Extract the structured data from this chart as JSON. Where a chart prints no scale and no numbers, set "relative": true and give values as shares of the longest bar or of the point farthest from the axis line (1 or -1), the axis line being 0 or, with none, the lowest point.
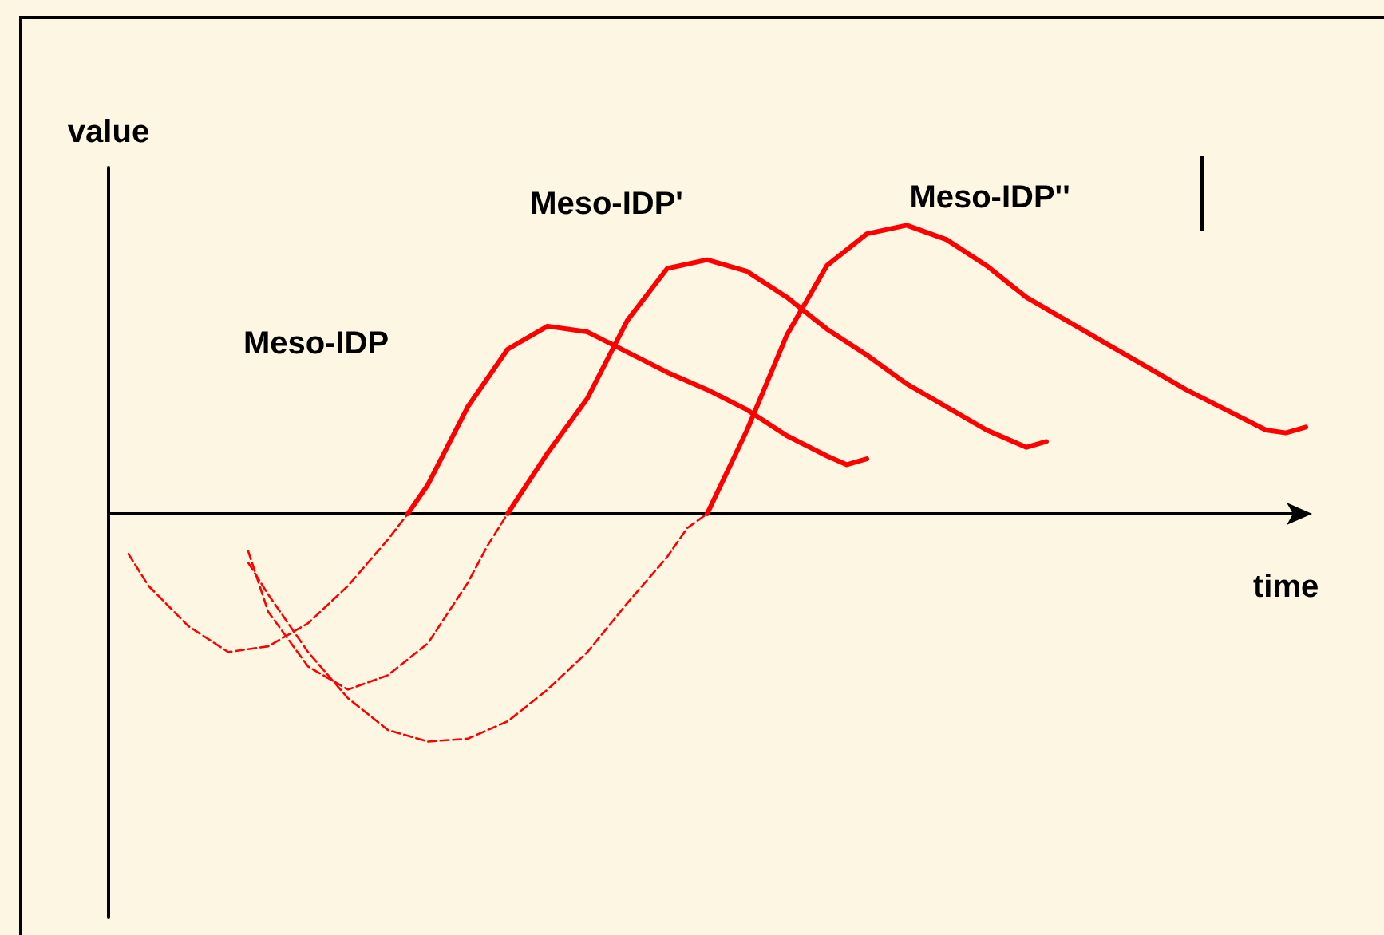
{
  "chart_data": {
    "type": "line",
    "relative": true,
    "xlabel": "time",
    "ylabel": "value",
    "marker": "none",
    "categories": [
      null,
      null,
      null,
      null,
      null,
      null,
      null,
      null,
      null,
      null,
      null,
      null,
      null,
      null,
      null,
      null,
      null,
      null,
      null,
      null,
      null,
      null,
      null,
      null,
      null,
      null,
      null,
      null,
      null,
      null,
      null,
      null,
      null,
      null,
      null,
      null,
      null,
      null,
      null,
      null,
      null,
      null,
      null,
      null,
      null,
      null,
      null,
      null,
      null,
      null,
      null,
      null,
      null,
      null,
      null,
      null,
      null,
      null,
      null,
      null,
      null
    ],
    "series": [
      {
        "color": "#ff0000",
        "line_style": "dashed",
        "values": [
          null,
          -0.14,
          -0.25,
          null,
          -0.39,
          null,
          -0.48,
          null,
          -0.46,
          null,
          -0.38,
          null,
          -0.25,
          null,
          -0.09,
          0,
          null,
          null,
          null,
          null,
          null,
          null,
          null,
          null,
          null,
          null,
          null,
          null,
          null,
          null,
          null,
          null,
          null,
          null,
          null,
          null,
          null,
          null,
          null,
          null,
          null,
          null,
          null,
          null,
          null,
          null,
          null,
          null,
          null,
          null,
          null,
          null,
          null,
          null,
          null,
          null,
          null,
          null,
          null,
          null,
          null
        ]
      },
      {
        "name": "Meso-IDP",
        "color": "#ff0000",
        "line_style": "solid",
        "values": [
          null,
          null,
          null,
          null,
          null,
          null,
          null,
          null,
          null,
          null,
          null,
          null,
          null,
          null,
          null,
          0,
          0.1,
          null,
          0.37,
          null,
          0.57,
          null,
          0.65,
          null,
          0.63,
          null,
          0.56,
          null,
          0.49,
          null,
          0.43,
          null,
          0.36,
          null,
          0.27,
          null,
          0.2,
          0.17,
          0.19,
          null,
          null,
          null,
          null,
          null,
          null,
          null,
          null,
          null,
          null,
          null,
          null,
          null,
          null,
          null,
          null,
          null,
          null,
          null,
          null,
          null,
          null
        ]
      },
      {
        "color": "#ff0000",
        "line_style": "dashed",
        "values": [
          null,
          null,
          null,
          null,
          null,
          null,
          null,
          -0.13,
          -0.34,
          null,
          -0.53,
          null,
          -0.61,
          null,
          -0.56,
          null,
          -0.45,
          null,
          -0.24,
          -0.11,
          0,
          null,
          null,
          null,
          null,
          null,
          null,
          null,
          null,
          null,
          null,
          null,
          null,
          null,
          null,
          null,
          null,
          null,
          null,
          null,
          null,
          null,
          null,
          null,
          null,
          null,
          null,
          null,
          null,
          null,
          null,
          null,
          null,
          null,
          null,
          null,
          null,
          null,
          null,
          null,
          null
        ]
      },
      {
        "name": "Meso-IDP'",
        "color": "#ff0000",
        "line_style": "solid",
        "values": [
          null,
          null,
          null,
          null,
          null,
          null,
          null,
          null,
          null,
          null,
          null,
          null,
          null,
          null,
          null,
          null,
          null,
          null,
          null,
          null,
          0,
          null,
          0.21,
          null,
          0.4,
          null,
          0.67,
          null,
          0.85,
          null,
          0.88,
          null,
          0.84,
          null,
          0.75,
          null,
          0.64,
          null,
          0.55,
          null,
          0.45,
          null,
          0.37,
          null,
          0.29,
          null,
          0.23,
          0.25,
          null,
          null,
          null,
          null,
          null,
          null,
          null,
          null,
          null,
          null,
          null,
          null,
          null
        ]
      },
      {
        "color": "#ff0000",
        "line_style": "dashed",
        "values": [
          null,
          null,
          null,
          null,
          null,
          null,
          null,
          -0.17,
          -0.28,
          null,
          -0.48,
          null,
          -0.64,
          null,
          -0.75,
          null,
          -0.79,
          null,
          -0.78,
          null,
          -0.72,
          null,
          -0.61,
          null,
          -0.48,
          null,
          -0.31,
          null,
          -0.15,
          -0.05,
          0,
          null,
          null,
          null,
          null,
          null,
          null,
          null,
          null,
          null,
          null,
          null,
          null,
          null,
          null,
          null,
          null,
          null,
          null,
          null,
          null,
          null,
          null,
          null,
          null,
          null,
          null,
          null,
          null,
          null,
          null
        ]
      },
      {
        "name": "Meso-IDP''",
        "color": "#ff0000",
        "line_style": "solid",
        "values": [
          null,
          null,
          null,
          null,
          null,
          null,
          null,
          null,
          null,
          null,
          null,
          null,
          null,
          null,
          null,
          null,
          null,
          null,
          null,
          null,
          null,
          null,
          null,
          null,
          null,
          null,
          null,
          null,
          null,
          null,
          0,
          null,
          0.29,
          null,
          0.62,
          null,
          0.86,
          null,
          0.97,
          null,
          1,
          null,
          0.95,
          null,
          0.86,
          null,
          0.75,
          null,
          0.67,
          null,
          0.59,
          null,
          0.51,
          null,
          0.43,
          null,
          0.36,
          null,
          0.29,
          0.28,
          0.3
        ]
      }
    ]
  }
}
